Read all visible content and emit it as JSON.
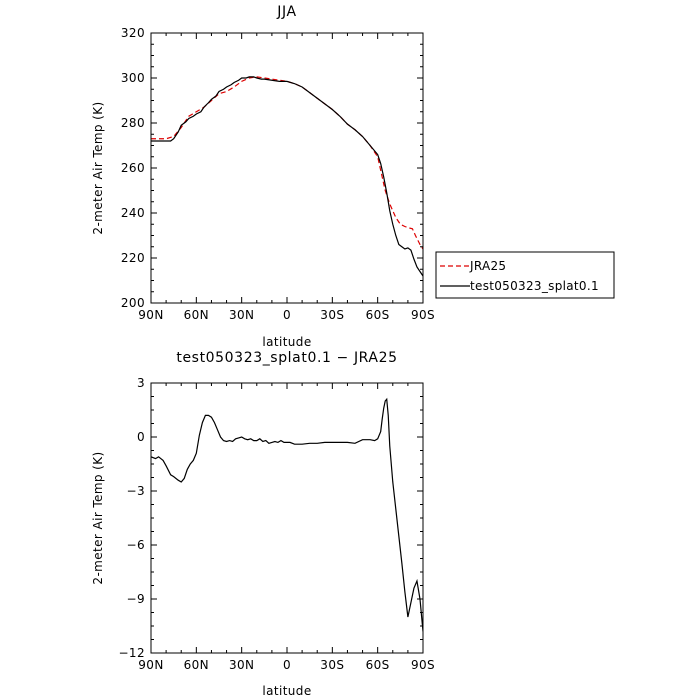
{
  "chart_data": [
    {
      "type": "line",
      "title": "JJA",
      "xlabel": "latitude",
      "ylabel": "2-meter Air Temp (K)",
      "xlim": [
        90,
        -90
      ],
      "ylim": [
        200,
        320
      ],
      "x_ticks": [
        {
          "value": 90,
          "label": "90N"
        },
        {
          "value": 60,
          "label": "60N"
        },
        {
          "value": 30,
          "label": "30N"
        },
        {
          "value": 0,
          "label": "0"
        },
        {
          "value": -30,
          "label": "30S"
        },
        {
          "value": -60,
          "label": "60S"
        },
        {
          "value": -90,
          "label": "90S"
        }
      ],
      "y_ticks": [
        {
          "value": 200,
          "label": "200"
        },
        {
          "value": 220,
          "label": "220"
        },
        {
          "value": 240,
          "label": "240"
        },
        {
          "value": 260,
          "label": "260"
        },
        {
          "value": 280,
          "label": "280"
        },
        {
          "value": 300,
          "label": "300"
        },
        {
          "value": 320,
          "label": "320"
        }
      ],
      "grid": false,
      "series": [
        {
          "name": "JRA25",
          "color": "#dd0000",
          "dash": "dashed",
          "x": [
            90,
            80,
            75,
            70,
            65,
            60,
            55,
            50,
            45,
            40,
            35,
            30,
            25,
            20,
            15,
            10,
            5,
            0,
            -5,
            -10,
            -15,
            -20,
            -25,
            -30,
            -35,
            -40,
            -45,
            -50,
            -55,
            -60,
            -62,
            -65,
            -68,
            -70,
            -72,
            -75,
            -78,
            -80,
            -83,
            -85,
            -88,
            -90
          ],
          "y": [
            273,
            273,
            274,
            278,
            283,
            285,
            287,
            290,
            293,
            294,
            296,
            298.5,
            300,
            300.5,
            300,
            299.5,
            299,
            298.5,
            297.5,
            296,
            293.5,
            291,
            288.5,
            286,
            283,
            279.5,
            277,
            274,
            270,
            265,
            259,
            250,
            244,
            241,
            238,
            235,
            234,
            233.5,
            233,
            230,
            226,
            224
          ]
        },
        {
          "name": "test050323_splat0.1",
          "color": "#000000",
          "dash": "solid",
          "x": [
            90,
            85,
            80,
            77,
            75,
            72,
            70,
            67,
            65,
            62,
            60,
            57,
            55,
            52,
            50,
            47,
            45,
            42,
            40,
            37,
            35,
            32,
            30,
            27,
            25,
            22,
            20,
            17,
            15,
            10,
            5,
            0,
            -5,
            -10,
            -15,
            -20,
            -25,
            -30,
            -35,
            -40,
            -45,
            -50,
            -55,
            -60,
            -62,
            -64,
            -66,
            -68,
            -70,
            -72,
            -74,
            -76,
            -78,
            -80,
            -82,
            -84,
            -86,
            -88,
            -90
          ],
          "y": [
            272,
            272,
            272,
            272,
            273,
            276,
            279,
            280.5,
            282,
            283,
            284,
            285,
            287,
            289,
            290.5,
            292,
            294,
            295,
            296,
            297,
            298,
            299,
            300,
            300,
            300.5,
            300.5,
            300,
            299.5,
            299.5,
            299,
            298.5,
            298.5,
            297.5,
            296,
            293.5,
            291,
            288.5,
            286,
            283,
            279.5,
            277,
            274,
            270,
            266,
            262,
            256,
            249,
            241,
            235,
            230,
            226,
            225,
            224,
            224.5,
            223.5,
            219.5,
            216,
            214,
            212
          ]
        }
      ],
      "legend": {
        "placement": "right"
      }
    },
    {
      "type": "line",
      "title": "test050323_splat0.1 − JRA25",
      "xlabel": "latitude",
      "ylabel": "2-meter Air Temp (K)",
      "xlim": [
        90,
        -90
      ],
      "ylim": [
        -12,
        3
      ],
      "x_ticks": [
        {
          "value": 90,
          "label": "90N"
        },
        {
          "value": 60,
          "label": "60N"
        },
        {
          "value": 30,
          "label": "30N"
        },
        {
          "value": 0,
          "label": "0"
        },
        {
          "value": -30,
          "label": "30S"
        },
        {
          "value": -60,
          "label": "60S"
        },
        {
          "value": -90,
          "label": "90S"
        }
      ],
      "y_ticks": [
        {
          "value": 3,
          "label": "3"
        },
        {
          "value": 0,
          "label": "0"
        },
        {
          "value": -3,
          "label": "−3"
        },
        {
          "value": -6,
          "label": "−6"
        },
        {
          "value": -9,
          "label": "−9"
        },
        {
          "value": -12,
          "label": "−12"
        }
      ],
      "grid": false,
      "series": [
        {
          "color": "#000000",
          "dash": "solid",
          "x": [
            90,
            87,
            85,
            82,
            80,
            77,
            75,
            72,
            70,
            68,
            66,
            64,
            62,
            60,
            58,
            56,
            54,
            52,
            50,
            48,
            46,
            44,
            42,
            40,
            38,
            36,
            34,
            32,
            30,
            28,
            26,
            24,
            22,
            20,
            18,
            16,
            14,
            12,
            10,
            8,
            6,
            4,
            2,
            0,
            -2,
            -5,
            -10,
            -15,
            -20,
            -25,
            -30,
            -35,
            -40,
            -45,
            -50,
            -55,
            -58,
            -60,
            -62,
            -63,
            -64,
            -65,
            -66,
            -67,
            -68,
            -70,
            -72,
            -74,
            -76,
            -78,
            -80,
            -82,
            -84,
            -86,
            -88,
            -90
          ],
          "y": [
            -1.1,
            -1.2,
            -1.1,
            -1.3,
            -1.6,
            -2.1,
            -2.2,
            -2.4,
            -2.5,
            -2.3,
            -1.8,
            -1.5,
            -1.3,
            -0.9,
            0.1,
            0.8,
            1.2,
            1.2,
            1.1,
            0.8,
            0.4,
            0.0,
            -0.2,
            -0.25,
            -0.2,
            -0.25,
            -0.1,
            -0.05,
            0.0,
            -0.1,
            -0.15,
            -0.1,
            -0.2,
            -0.2,
            -0.1,
            -0.25,
            -0.2,
            -0.35,
            -0.3,
            -0.25,
            -0.3,
            -0.2,
            -0.3,
            -0.3,
            -0.3,
            -0.4,
            -0.4,
            -0.35,
            -0.35,
            -0.3,
            -0.3,
            -0.3,
            -0.3,
            -0.35,
            -0.15,
            -0.15,
            -0.2,
            -0.1,
            0.3,
            1.0,
            1.6,
            2.0,
            2.1,
            1.2,
            -0.5,
            -2.5,
            -4.0,
            -5.5,
            -7.0,
            -8.6,
            -10.0,
            -9.2,
            -8.4,
            -8.0,
            -9.0,
            -10.8
          ]
        }
      ]
    }
  ]
}
